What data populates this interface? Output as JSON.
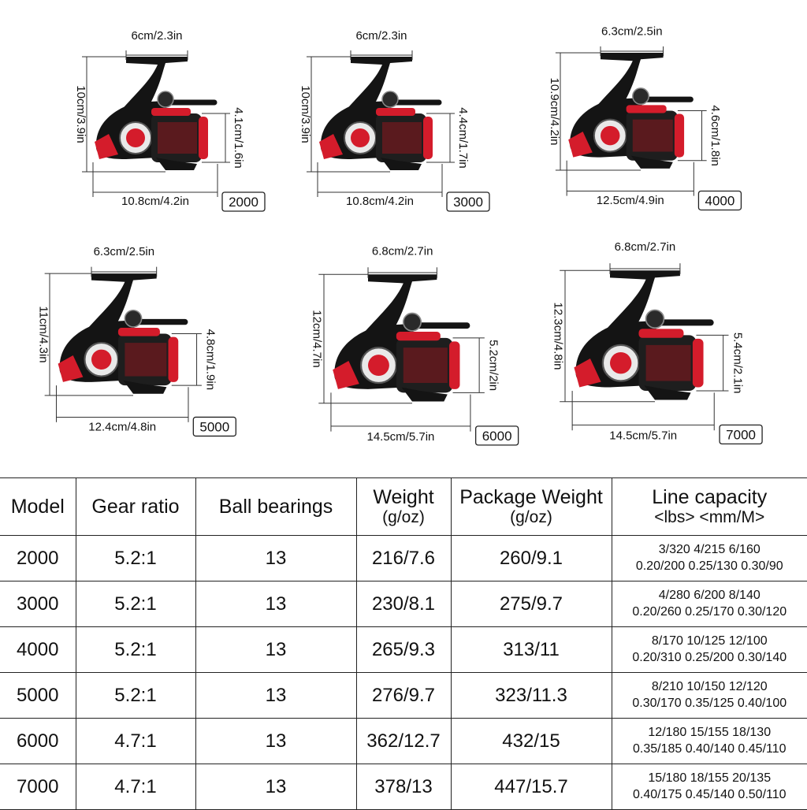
{
  "accent_color": "#d41c2b",
  "reel_body_color": "#141414",
  "reels": [
    {
      "model": "2000",
      "height": "10cm/3.9in",
      "handle": "6cm/2.3in",
      "spool": "4.1cm/1.6in",
      "length": "10.8cm/4.2in"
    },
    {
      "model": "3000",
      "height": "10cm/3.9in",
      "handle": "6cm/2.3in",
      "spool": "4.4cm/1.7in",
      "length": "10.8cm/4.2in"
    },
    {
      "model": "4000",
      "height": "10.9cm/4.2in",
      "handle": "6.3cm/2.5in",
      "spool": "4.6cm/1.8in",
      "length": "12.5cm/4.9in"
    },
    {
      "model": "5000",
      "height": "11cm/4.3in",
      "handle": "6.3cm/2.5in",
      "spool": "4.8cm/1.9in",
      "length": "12.4cm/4.8in"
    },
    {
      "model": "6000",
      "height": "12cm/4.7in",
      "handle": "6.8cm/2.7in",
      "spool": "5.2cm/2in",
      "length": "14.5cm/5.7in"
    },
    {
      "model": "7000",
      "height": "12.3cm/4.8in",
      "handle": "6.8cm/2.7in",
      "spool": "5.4cm/2.1in",
      "length": "14.5cm/5.7in"
    }
  ],
  "table": {
    "headers": {
      "model": "Model",
      "gear_ratio": "Gear ratio",
      "ball_bearings": "Ball bearings",
      "weight": "Weight",
      "weight_unit": "(g/oz)",
      "package_weight": "Package Weight",
      "package_weight_unit": "(g/oz)",
      "line_capacity": "Line capacity",
      "line_capacity_unit": "<lbs>  <mm/M>"
    },
    "rows": [
      {
        "model": "2000",
        "gear_ratio": "5.2:1",
        "ball_bearings": "13",
        "weight": "216/7.6",
        "package_weight": "260/9.1",
        "line_lbs": "3/320 4/215 6/160",
        "line_mm": "0.20/200 0.25/130 0.30/90"
      },
      {
        "model": "3000",
        "gear_ratio": "5.2:1",
        "ball_bearings": "13",
        "weight": "230/8.1",
        "package_weight": "275/9.7",
        "line_lbs": "4/280 6/200 8/140",
        "line_mm": "0.20/260 0.25/170 0.30/120"
      },
      {
        "model": "4000",
        "gear_ratio": "5.2:1",
        "ball_bearings": "13",
        "weight": "265/9.3",
        "package_weight": "313/11",
        "line_lbs": "8/170 10/125 12/100",
        "line_mm": "0.20/310 0.25/200 0.30/140"
      },
      {
        "model": "5000",
        "gear_ratio": "5.2:1",
        "ball_bearings": "13",
        "weight": "276/9.7",
        "package_weight": "323/11.3",
        "line_lbs": "8/210 10/150 12/120",
        "line_mm": "0.30/170 0.35/125 0.40/100"
      },
      {
        "model": "6000",
        "gear_ratio": "4.7:1",
        "ball_bearings": "13",
        "weight": "362/12.7",
        "package_weight": "432/15",
        "line_lbs": "12/180 15/155 18/130",
        "line_mm": "0.35/185 0.40/140 0.45/110"
      },
      {
        "model": "7000",
        "gear_ratio": "4.7:1",
        "ball_bearings": "13",
        "weight": "378/13",
        "package_weight": "447/15.7",
        "line_lbs": "15/180 18/155 20/135",
        "line_mm": "0.40/175 0.45/140 0.50/110"
      }
    ]
  }
}
